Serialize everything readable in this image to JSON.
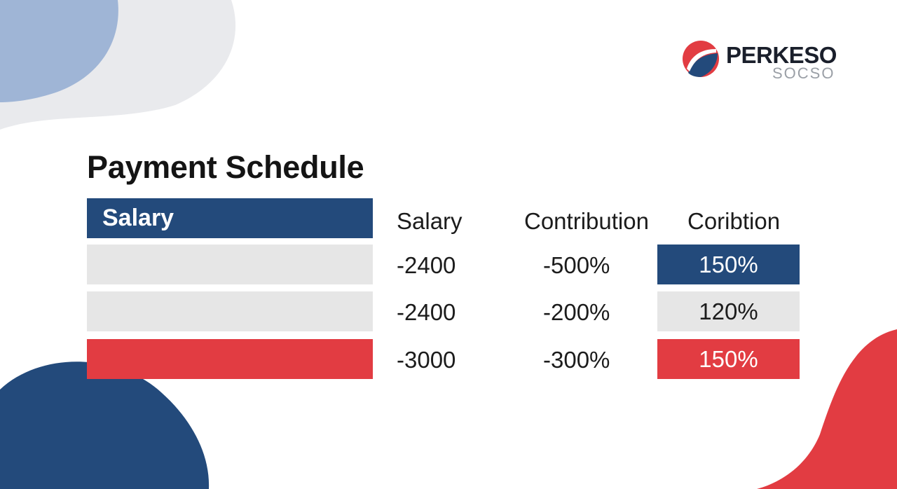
{
  "brand": {
    "name": "PERKESO",
    "sub": "SOCSO",
    "colors": {
      "navy": "#234a7b",
      "red": "#e23c42",
      "gray": "#e6e6e6"
    }
  },
  "title": "Payment Schedule",
  "left_column": {
    "header": "Salary",
    "rows": [
      {
        "color": "#e6e6e6"
      },
      {
        "color": "#e6e6e6"
      },
      {
        "color": "#e23c42"
      }
    ]
  },
  "columns": [
    "Salary",
    "Contribution",
    "Coribtion"
  ],
  "rows": [
    {
      "salary": "-2400",
      "contribution": "-500%",
      "rate": "150%",
      "badge_color": "#234a7b",
      "badge_text_color": "#ffffff"
    },
    {
      "salary": "-2400",
      "contribution": "-200%",
      "rate": "120%",
      "badge_color": "#e6e6e6",
      "badge_text_color": "#1c1c1c"
    },
    {
      "salary": "-3000",
      "contribution": "-300%",
      "rate": "150%",
      "badge_color": "#e23c42",
      "badge_text_color": "#ffffff"
    }
  ]
}
